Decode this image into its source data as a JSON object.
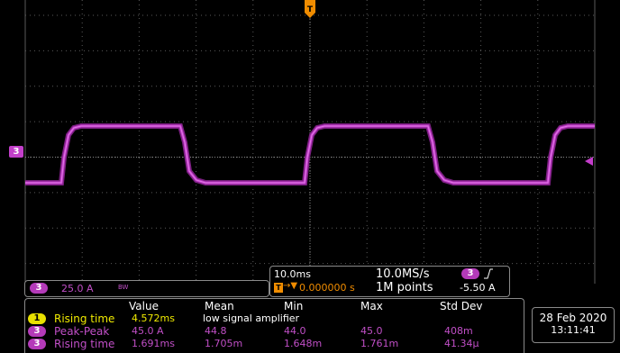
{
  "channel_ch3": {
    "marker": "3",
    "scale": "25.0 A",
    "bw_symbol": "BW"
  },
  "timebase": {
    "time_per_div": "10.0ms",
    "trigger_position": "0.000000 s",
    "sample_rate": "10.0MS/s",
    "record_length": "1M points"
  },
  "trigger": {
    "source": "3",
    "slope_icon": "rising-edge-icon",
    "level": "-5.50 A",
    "marker_label": "T"
  },
  "measurements": {
    "headers": [
      "Value",
      "Mean",
      "Min",
      "Max",
      "Std Dev"
    ],
    "rows": [
      {
        "channel": "1",
        "label": "Rising time",
        "value": "4.572ms",
        "note": "low signal amplifier",
        "mean": "",
        "min": "",
        "max": "",
        "std": ""
      },
      {
        "channel": "3",
        "label": "Peak-Peak",
        "value": "45.0 A",
        "mean": "44.8",
        "min": "44.0",
        "max": "45.0",
        "std": "408m"
      },
      {
        "channel": "3",
        "label": "Rising time",
        "value": "1.691ms",
        "mean": "1.705m",
        "min": "1.648m",
        "max": "1.761m",
        "std": "41.34µ"
      }
    ]
  },
  "datetime": {
    "date": "28 Feb 2020",
    "time": "13:11:41"
  },
  "colors": {
    "grid": "#5a5a5a",
    "trace": "#c43dcb",
    "ch1": "#f0ea00",
    "ch3": "#c14fc7",
    "trigger": "#f08c00"
  }
}
